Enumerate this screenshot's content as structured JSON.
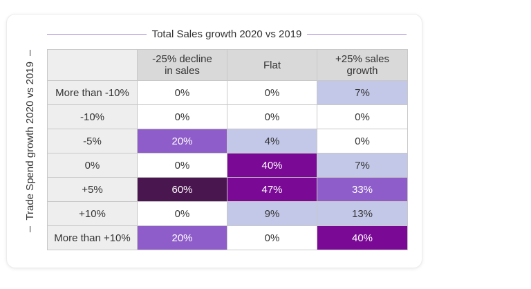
{
  "chart_data": {
    "type": "heatmap",
    "title": "Total Sales growth 2020 vs 2019",
    "xlabel": "Total Sales growth 2020 vs 2019",
    "ylabel": "Trade Spend growth 2020 vs 2019",
    "columns": [
      "-25% decline in sales",
      "Flat",
      "+25% sales growth"
    ],
    "rows": [
      "More than -10%",
      "-10%",
      "-5%",
      "0%",
      "+5%",
      "+10%",
      "More than +10%"
    ],
    "values": [
      [
        0,
        0,
        7
      ],
      [
        0,
        0,
        0
      ],
      [
        20,
        4,
        0
      ],
      [
        0,
        40,
        7
      ],
      [
        60,
        47,
        33
      ],
      [
        0,
        9,
        13
      ],
      [
        20,
        0,
        40
      ]
    ],
    "cell_labels": [
      [
        "0%",
        "0%",
        "7%"
      ],
      [
        "0%",
        "0%",
        "0%"
      ],
      [
        "20%",
        "4%",
        "0%"
      ],
      [
        "0%",
        "40%",
        "7%"
      ],
      [
        "60%",
        "47%",
        "33%"
      ],
      [
        "0%",
        "9%",
        "13%"
      ],
      [
        "20%",
        "0%",
        "40%"
      ]
    ],
    "value_unit": "%",
    "legend": "none"
  },
  "colors": {
    "scale_low": "#c3c8e8",
    "scale_mid": "#8e5dc9",
    "scale_high": "#7a0a96",
    "scale_max": "#4a164f",
    "zero": "#ffffff",
    "header_bg": "#d9d9d9",
    "row_header_bg": "#eeeeee"
  }
}
